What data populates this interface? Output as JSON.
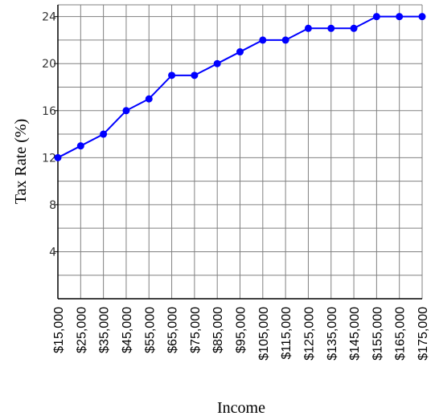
{
  "chart_data": {
    "type": "line",
    "title": "",
    "xlabel": "Income",
    "ylabel": "Tax Rate (%)",
    "categories": [
      "$15,000",
      "$25,000",
      "$35,000",
      "$45,000",
      "$55,000",
      "$65,000",
      "$75,000",
      "$85,000",
      "$95,000",
      "$105,000",
      "$115,000",
      "$125,000",
      "$135,000",
      "$145,000",
      "$155,000",
      "$165,000",
      "$175,000"
    ],
    "values": [
      12,
      13,
      14,
      16,
      17,
      19,
      19,
      20,
      21,
      22,
      22,
      23,
      23,
      23,
      24,
      24,
      24
    ],
    "ylim": [
      0,
      25
    ],
    "yticks": [
      "4",
      "8",
      "12",
      "16",
      "20",
      "24"
    ],
    "grid": true,
    "line_color": "#0000ff",
    "marker_color": "#0000ff",
    "grid_color": "#808080"
  }
}
